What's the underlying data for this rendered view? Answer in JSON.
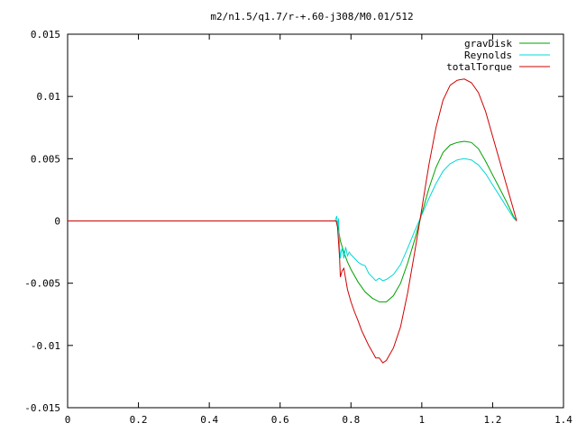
{
  "chart_data": {
    "type": "line",
    "title": "m2/n1.5/q1.7/r-+.60-j308/M0.01/512",
    "xlabel": "",
    "ylabel": "",
    "xlim": [
      0,
      1.4
    ],
    "ylim": [
      -0.015,
      0.015
    ],
    "grid": false,
    "legend_position": "top-right",
    "x_ticks": [
      0,
      0.2,
      0.4,
      0.6,
      0.8,
      1,
      1.2,
      1.4
    ],
    "x_tick_labels": [
      "0",
      "0.2",
      "0.4",
      "0.6",
      "0.8",
      "1",
      "1.2",
      "1.4"
    ],
    "y_ticks": [
      -0.015,
      -0.01,
      -0.005,
      0,
      0.005,
      0.01,
      0.015
    ],
    "y_tick_labels": [
      "-0.015",
      "-0.01",
      "-0.005",
      "0",
      "0.005",
      "0.01",
      "0.015"
    ],
    "series": [
      {
        "name": "gravDisk",
        "color": "#00a000",
        "points": [
          [
            0,
            0
          ],
          [
            0.758,
            0
          ],
          [
            0.762,
            -0.0002
          ],
          [
            0.77,
            -0.0016
          ],
          [
            0.78,
            -0.0025
          ],
          [
            0.79,
            -0.0033
          ],
          [
            0.8,
            -0.0039
          ],
          [
            0.82,
            -0.0049
          ],
          [
            0.84,
            -0.0057
          ],
          [
            0.86,
            -0.0062
          ],
          [
            0.88,
            -0.0065
          ],
          [
            0.9,
            -0.0065
          ],
          [
            0.92,
            -0.006
          ],
          [
            0.94,
            -0.005
          ],
          [
            0.96,
            -0.0034
          ],
          [
            0.98,
            -0.0015
          ],
          [
            1.0,
            0.0006
          ],
          [
            1.02,
            0.0026
          ],
          [
            1.04,
            0.0043
          ],
          [
            1.06,
            0.0055
          ],
          [
            1.08,
            0.0061
          ],
          [
            1.1,
            0.0063
          ],
          [
            1.12,
            0.0064
          ],
          [
            1.14,
            0.0063
          ],
          [
            1.16,
            0.0058
          ],
          [
            1.18,
            0.0048
          ],
          [
            1.2,
            0.0037
          ],
          [
            1.22,
            0.0026
          ],
          [
            1.24,
            0.0015
          ],
          [
            1.26,
            0.0003
          ],
          [
            1.268,
            0
          ]
        ]
      },
      {
        "name": "Reynolds",
        "color": "#00d8d8",
        "points": [
          [
            0,
            0
          ],
          [
            0.755,
            0
          ],
          [
            0.76,
            0.0004
          ],
          [
            0.762,
            -0.0005
          ],
          [
            0.765,
            0.0002
          ],
          [
            0.768,
            -0.0022
          ],
          [
            0.77,
            -0.003
          ],
          [
            0.772,
            -0.0025
          ],
          [
            0.775,
            -0.0022
          ],
          [
            0.78,
            -0.003
          ],
          [
            0.785,
            -0.0021
          ],
          [
            0.79,
            -0.0028
          ],
          [
            0.795,
            -0.0025
          ],
          [
            0.8,
            -0.0027
          ],
          [
            0.81,
            -0.003
          ],
          [
            0.82,
            -0.0033
          ],
          [
            0.83,
            -0.0035
          ],
          [
            0.84,
            -0.0036
          ],
          [
            0.85,
            -0.0042
          ],
          [
            0.86,
            -0.0045
          ],
          [
            0.87,
            -0.0048
          ],
          [
            0.88,
            -0.0046
          ],
          [
            0.89,
            -0.0048
          ],
          [
            0.9,
            -0.0047
          ],
          [
            0.92,
            -0.0043
          ],
          [
            0.94,
            -0.0035
          ],
          [
            0.96,
            -0.0022
          ],
          [
            0.98,
            -0.0008
          ],
          [
            1.0,
            0.0005
          ],
          [
            1.02,
            0.0018
          ],
          [
            1.04,
            0.003
          ],
          [
            1.06,
            0.004
          ],
          [
            1.08,
            0.0046
          ],
          [
            1.1,
            0.0049
          ],
          [
            1.12,
            0.005
          ],
          [
            1.14,
            0.0049
          ],
          [
            1.16,
            0.0045
          ],
          [
            1.18,
            0.0038
          ],
          [
            1.2,
            0.0029
          ],
          [
            1.22,
            0.002
          ],
          [
            1.24,
            0.0011
          ],
          [
            1.26,
            0.0002
          ],
          [
            1.268,
            0
          ]
        ]
      },
      {
        "name": "totalTorque",
        "color": "#d00000",
        "points": [
          [
            0,
            0
          ],
          [
            0.758,
            0
          ],
          [
            0.762,
            -0.0005
          ],
          [
            0.768,
            -0.003
          ],
          [
            0.77,
            -0.0045
          ],
          [
            0.775,
            -0.004
          ],
          [
            0.78,
            -0.0038
          ],
          [
            0.79,
            -0.0055
          ],
          [
            0.8,
            -0.0065
          ],
          [
            0.81,
            -0.0073
          ],
          [
            0.82,
            -0.008
          ],
          [
            0.83,
            -0.0088
          ],
          [
            0.84,
            -0.0094
          ],
          [
            0.85,
            -0.01
          ],
          [
            0.86,
            -0.0105
          ],
          [
            0.87,
            -0.011
          ],
          [
            0.88,
            -0.011
          ],
          [
            0.89,
            -0.0114
          ],
          [
            0.9,
            -0.0112
          ],
          [
            0.92,
            -0.0102
          ],
          [
            0.94,
            -0.0085
          ],
          [
            0.96,
            -0.0058
          ],
          [
            0.98,
            -0.0025
          ],
          [
            1.0,
            0.001
          ],
          [
            1.02,
            0.0045
          ],
          [
            1.04,
            0.0075
          ],
          [
            1.06,
            0.0097
          ],
          [
            1.08,
            0.0109
          ],
          [
            1.1,
            0.0113
          ],
          [
            1.12,
            0.0114
          ],
          [
            1.14,
            0.0111
          ],
          [
            1.16,
            0.0103
          ],
          [
            1.18,
            0.0088
          ],
          [
            1.2,
            0.0068
          ],
          [
            1.22,
            0.0048
          ],
          [
            1.24,
            0.0028
          ],
          [
            1.26,
            0.0008
          ],
          [
            1.268,
            0
          ]
        ]
      }
    ]
  }
}
